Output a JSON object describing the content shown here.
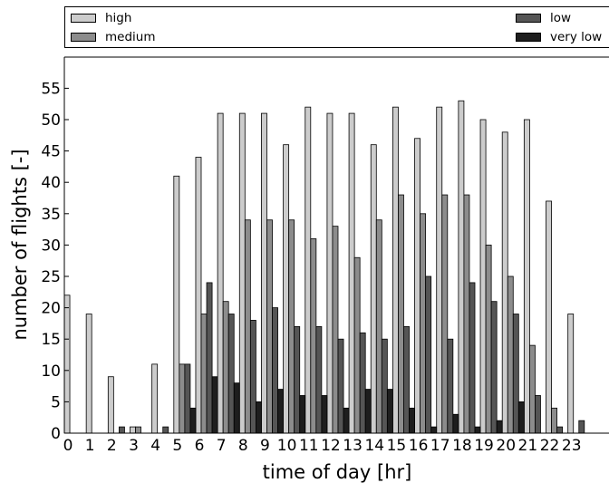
{
  "chart_data": {
    "type": "bar",
    "title": "",
    "xlabel": "time of day [hr]",
    "ylabel": "number  of flights [-]",
    "categories": [
      "0",
      "1",
      "2",
      "3",
      "4",
      "5",
      "6",
      "7",
      "8",
      "9",
      "10",
      "11",
      "12",
      "13",
      "14",
      "15",
      "16",
      "17",
      "18",
      "19",
      "20",
      "21",
      "22",
      "23"
    ],
    "ylim": [
      0,
      60
    ],
    "yticks": [
      0,
      5,
      10,
      15,
      20,
      25,
      30,
      35,
      40,
      45,
      50,
      55
    ],
    "legend_position": "top",
    "grid": false,
    "series": [
      {
        "name": "high",
        "color": "#cccccc",
        "values": [
          22,
          19,
          9,
          1,
          11,
          41,
          44,
          51,
          51,
          51,
          46,
          52,
          51,
          51,
          46,
          52,
          47,
          52,
          53,
          50,
          48,
          50,
          37,
          19
        ]
      },
      {
        "name": "medium",
        "color": "#8c8c8c",
        "values": [
          0,
          0,
          0,
          1,
          0,
          11,
          19,
          21,
          34,
          34,
          34,
          31,
          33,
          28,
          34,
          38,
          35,
          38,
          38,
          30,
          25,
          14,
          4,
          0
        ]
      },
      {
        "name": "low",
        "color": "#555555",
        "values": [
          0,
          0,
          1,
          0,
          1,
          11,
          24,
          19,
          18,
          20,
          17,
          17,
          15,
          16,
          15,
          17,
          25,
          15,
          24,
          21,
          19,
          6,
          1,
          2
        ]
      },
      {
        "name": "very low",
        "color": "#1e1e1e",
        "values": [
          0,
          0,
          0,
          0,
          0,
          4,
          9,
          8,
          5,
          7,
          6,
          6,
          4,
          7,
          7,
          4,
          1,
          3,
          1,
          2,
          5,
          0,
          0,
          0
        ]
      }
    ]
  }
}
